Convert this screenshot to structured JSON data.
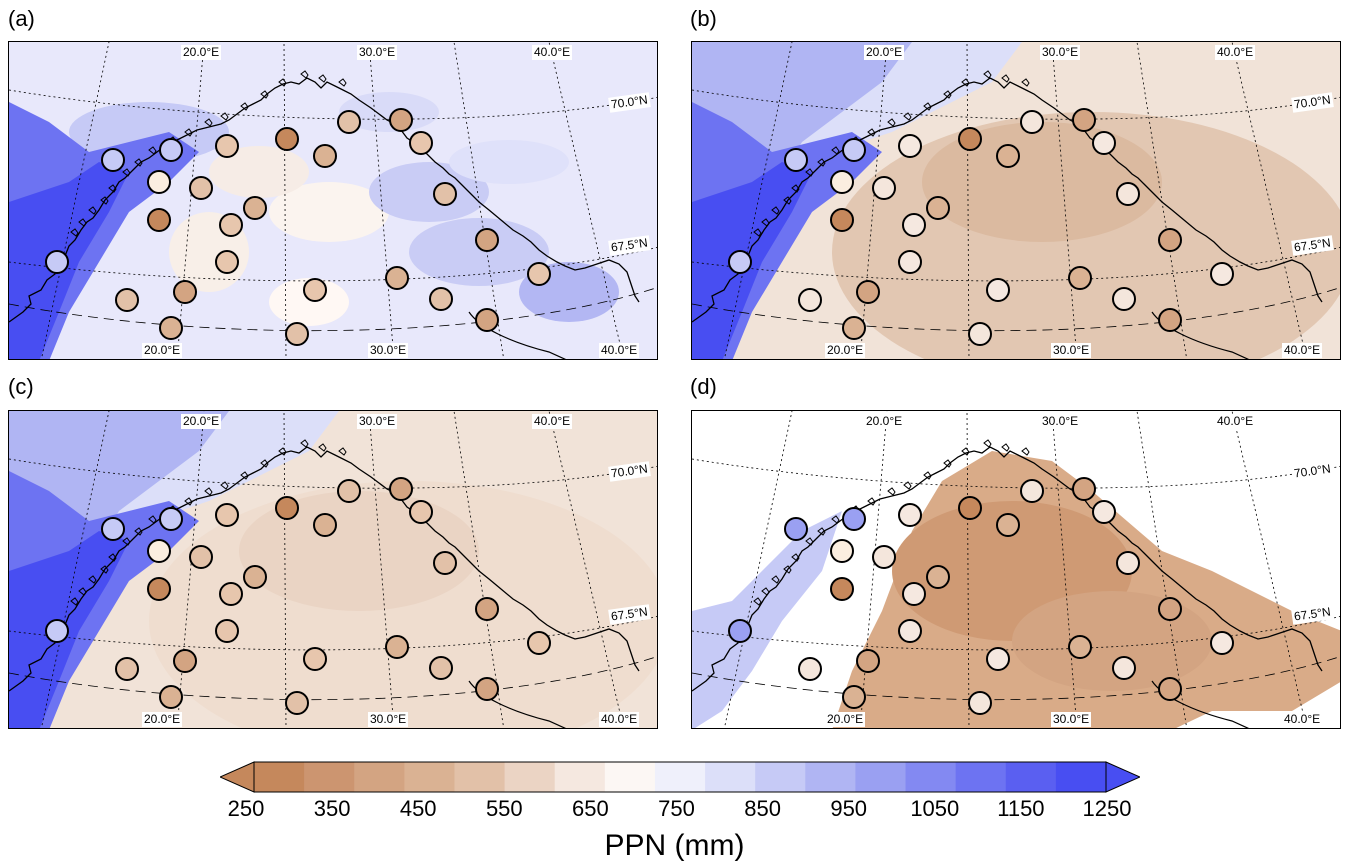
{
  "panels": [
    {
      "label": "(a)",
      "variant": "a"
    },
    {
      "label": "(b)",
      "variant": "b"
    },
    {
      "label": "(c)",
      "variant": "c"
    },
    {
      "label": "(d)",
      "variant": "d"
    }
  ],
  "map_labels": {
    "lon_top": [
      "20.0°E",
      "30.0°E",
      "40.0°E"
    ],
    "lon_bottom": [
      "20.0°E",
      "30.0°E",
      "40.0°E"
    ],
    "lat": [
      "70.0°N",
      "67.5°N"
    ]
  },
  "colorbar": {
    "ticks": [
      "250",
      "350",
      "450",
      "550",
      "650",
      "750",
      "850",
      "950",
      "1050",
      "1150",
      "1250"
    ],
    "title": "PPN (mm)",
    "colors": [
      "#c5885c",
      "#cc9570",
      "#d3a482",
      "#dab293",
      "#e2c1a8",
      "#ebd4c4",
      "#f5e8e0",
      "#fcf7f4",
      "#eff0fb",
      "#dcdff9",
      "#c6caf6",
      "#b0b5f3",
      "#9aa0f2",
      "#8389f2",
      "#6d73f2",
      "#5a5ff1",
      "#484ef2"
    ]
  },
  "stations_colors": {
    "a": [
      "#c8caf3",
      "#c8caf3",
      "#f6e2cf",
      "#ffd0b8"
    ],
    "note": ""
  }
}
